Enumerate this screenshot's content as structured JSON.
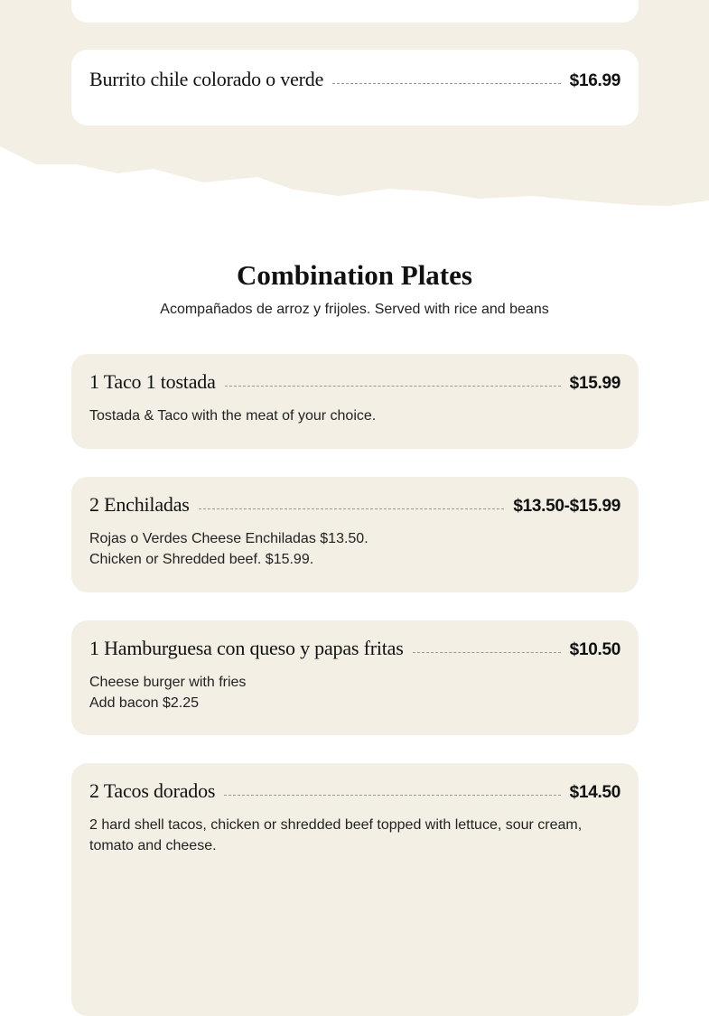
{
  "colors": {
    "section_bg": "#f3efe5",
    "card_bg": "#f3efe5"
  },
  "previous_section": {
    "items": [
      {
        "title": "Burrito chile colorado o verde",
        "price": "$16.99"
      }
    ]
  },
  "combination": {
    "title": "Combination Plates",
    "subtitle": "Acompañados de arroz y frijoles. Served with rice and beans",
    "items": [
      {
        "title": "1 Taco 1 tostada",
        "price": "$15.99",
        "desc": [
          "Tostada & Taco with the meat of your choice."
        ]
      },
      {
        "title": "2 Enchiladas",
        "price": "$13.50-$15.99",
        "desc": [
          "Rojas o Verdes Cheese Enchiladas $13.50.",
          "Chicken or Shredded beef. $15.99."
        ]
      },
      {
        "title": "1 Hamburguesa con queso y papas fritas",
        "price": "$10.50",
        "desc": [
          "Cheese burger with fries",
          "Add bacon $2.25"
        ]
      },
      {
        "title": "2 Tacos dorados",
        "price": "$14.50",
        "desc": [
          "2 hard shell tacos, chicken or shredded beef topped with lettuce, sour cream, tomato and cheese."
        ]
      }
    ]
  }
}
